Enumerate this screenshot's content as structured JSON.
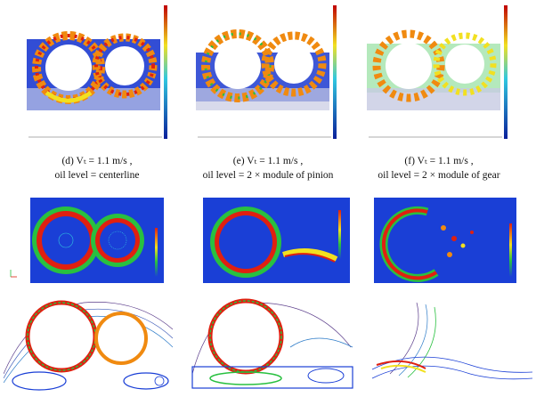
{
  "captions": [
    {
      "id": "d",
      "line1": "(d) Vₜ = 1.1 m/s ,",
      "line2": "oil level = centerline"
    },
    {
      "id": "e",
      "line1": "(e) Vₜ = 1.1 m/s ,",
      "line2": "oil level = 2 × module of pinion"
    },
    {
      "id": "f",
      "line1": "(f) Vₜ = 1.1 m/s ,",
      "line2": "oil level = 2 × module of gear"
    }
  ],
  "colors": {
    "background_blue": "#1a3fd6",
    "deep_blue": "#0a1f9a",
    "red": "#e02010",
    "orange": "#f08a10",
    "yellow": "#f2e020",
    "green": "#29c040",
    "cyan": "#30c8e0"
  },
  "icons": [
    "axis-triad-icon",
    "colorbar-icon"
  ]
}
